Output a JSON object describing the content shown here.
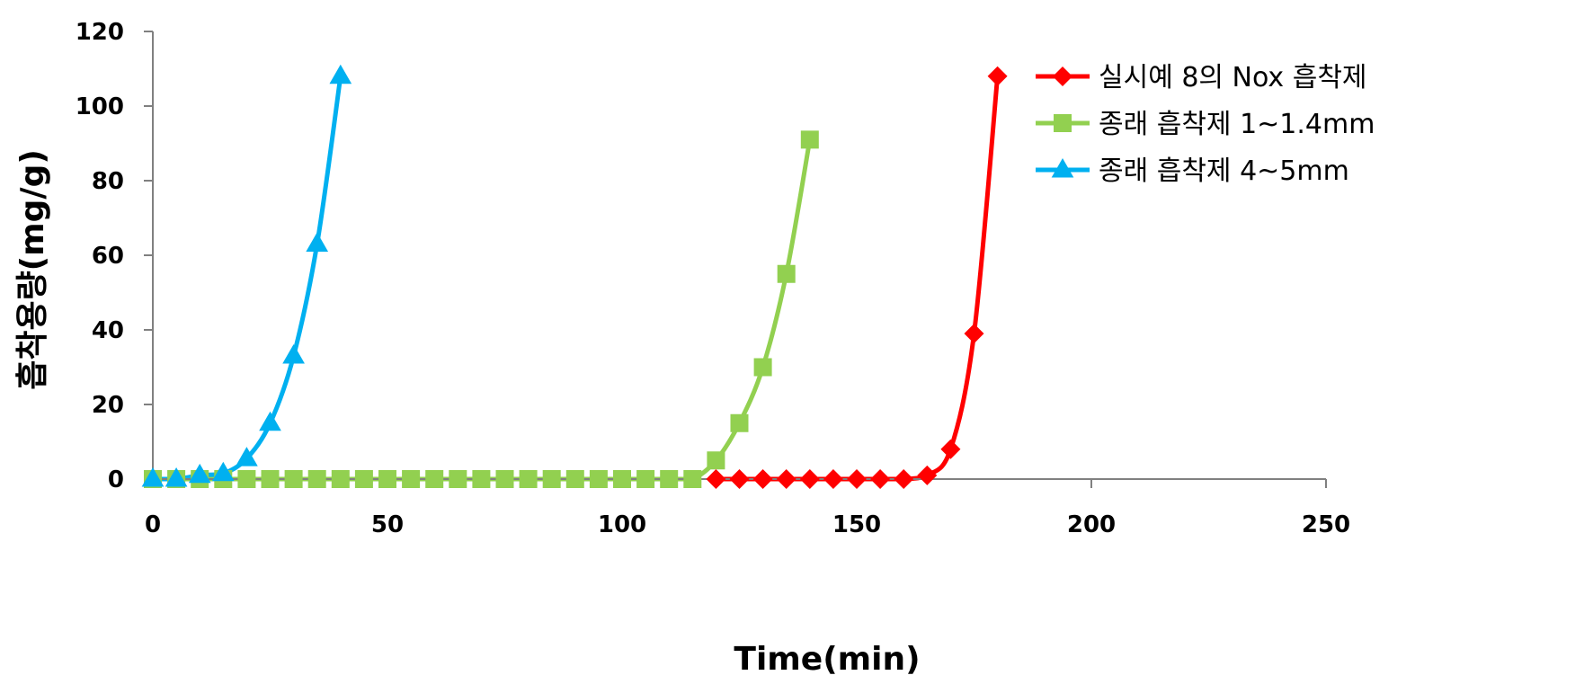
{
  "chart_data": {
    "type": "line",
    "xlabel": "Time(min)",
    "ylabel": "흡착용량(mg/g)",
    "xlim": [
      0,
      250
    ],
    "ylim": [
      0,
      120
    ],
    "xticks": [
      0,
      50,
      100,
      150,
      200,
      250
    ],
    "yticks": [
      0,
      20,
      40,
      60,
      80,
      100,
      120
    ],
    "grid": false,
    "legend_position": "top-right",
    "series": [
      {
        "name": "실시예 8의 Nox 흡착제",
        "color": "#FF0000",
        "marker": "diamond",
        "x": [
          120,
          125,
          130,
          135,
          140,
          145,
          150,
          155,
          160,
          165,
          170,
          175,
          180
        ],
        "y": [
          0,
          0,
          0,
          0,
          0,
          0,
          0,
          0,
          0,
          1,
          8,
          39,
          108
        ]
      },
      {
        "name": "종래 흡착제 1~1.4mm",
        "color": "#92D050",
        "marker": "square",
        "x": [
          0,
          5,
          10,
          15,
          20,
          25,
          30,
          35,
          40,
          45,
          50,
          55,
          60,
          65,
          70,
          75,
          80,
          85,
          90,
          95,
          100,
          105,
          110,
          115,
          120,
          125,
          130,
          135,
          140
        ],
        "y": [
          0,
          0,
          0,
          0,
          0,
          0,
          0,
          0,
          0,
          0,
          0,
          0,
          0,
          0,
          0,
          0,
          0,
          0,
          0,
          0,
          0,
          0,
          0,
          0,
          5,
          15,
          30,
          55,
          91
        ]
      },
      {
        "name": "종래 흡착제 4~5mm",
        "color": "#00B0F0",
        "marker": "triangle",
        "x": [
          0,
          5,
          10,
          15,
          20,
          25,
          30,
          35,
          40
        ],
        "y": [
          0,
          0,
          1,
          1.5,
          5.5,
          15,
          33,
          63,
          108
        ]
      }
    ]
  }
}
